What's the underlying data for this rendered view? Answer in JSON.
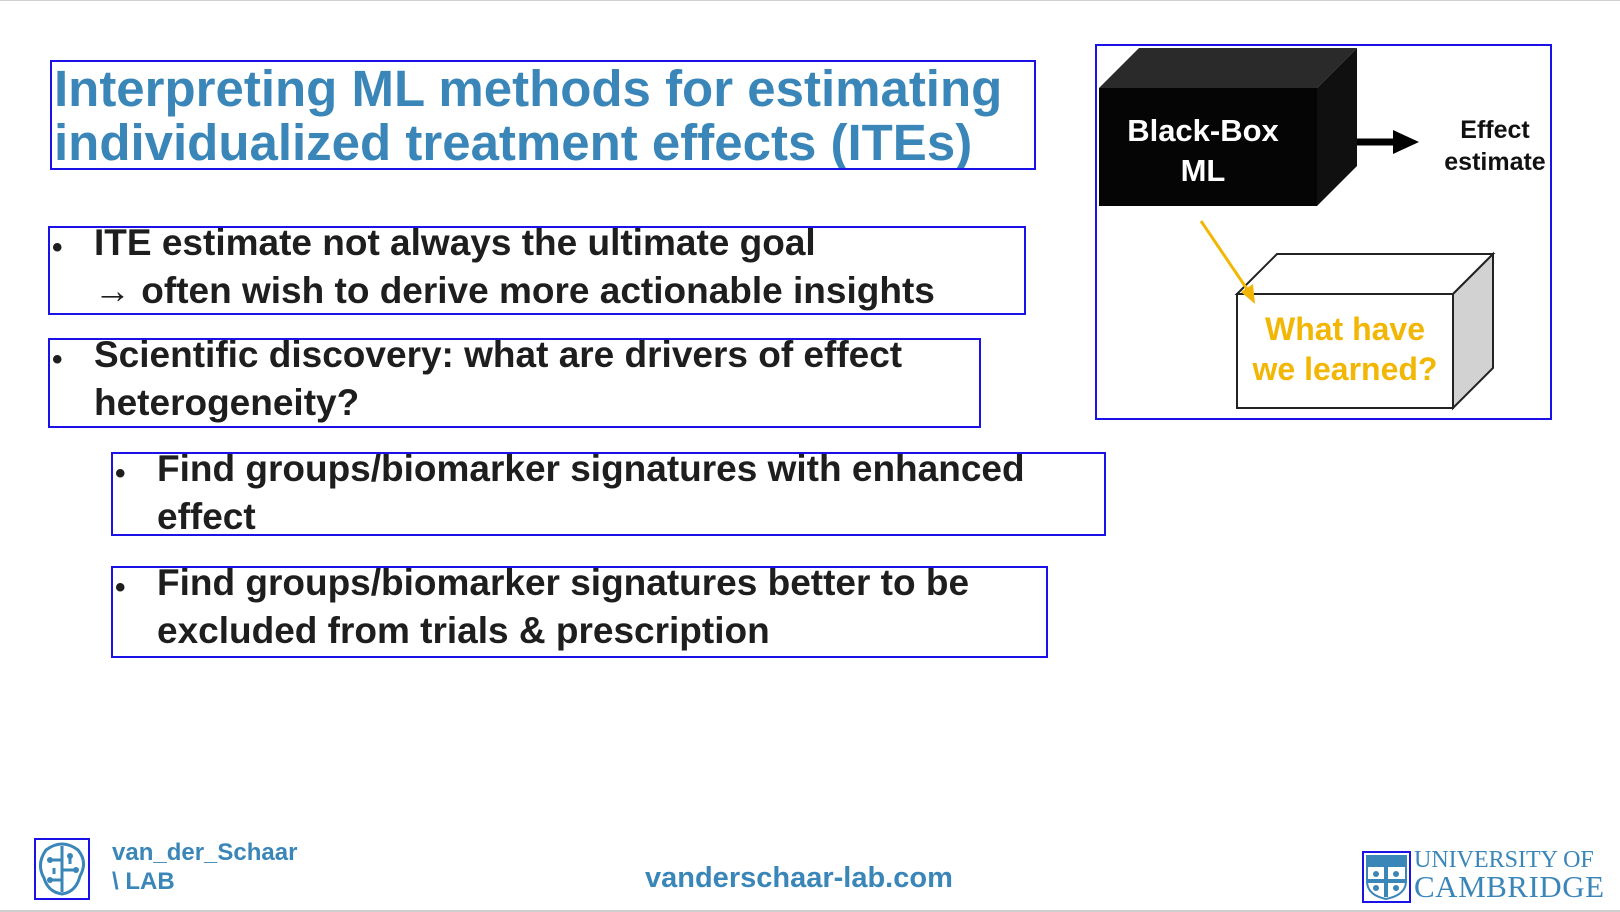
{
  "slide": {
    "title_line1": "Interpreting ML methods for estimating",
    "title_line2": "individualized treatment effects (ITEs)",
    "bullet_marker": "•",
    "bullets": [
      {
        "line1": "ITE estimate not always the ultimate goal",
        "line2": "→ often wish to  derive more actionable insights"
      },
      {
        "line1": "Scientific discovery: what are drivers of effect",
        "line2": "heterogeneity?"
      }
    ],
    "sub_bullets": [
      {
        "line1": "Find groups/biomarker signatures with enhanced",
        "line2": "effect"
      },
      {
        "line1": "Find groups/biomarker signatures better to be",
        "line2": "excluded from trials & prescription"
      }
    ]
  },
  "diagram": {
    "black_box_line1": "Black-Box",
    "black_box_line2": "ML",
    "output_line1": "Effect",
    "output_line2": "estimate",
    "question_line1": "What have",
    "question_line2": "we learned?",
    "colors": {
      "black_box": "#0a0a0a",
      "question_text": "#f2b705",
      "arrow_yellow": "#f2b705"
    }
  },
  "footer": {
    "lab_line1": "van_der_Schaar",
    "lab_line2": "\\ LAB",
    "url": "vanderschaar-lab.com",
    "university_line1": "UNIVERSITY OF",
    "university_line2": "CAMBRIDGE"
  },
  "colors": {
    "title": "#3a86b8",
    "text": "#1e1e1e",
    "annotation_border": "#1a12e6"
  }
}
